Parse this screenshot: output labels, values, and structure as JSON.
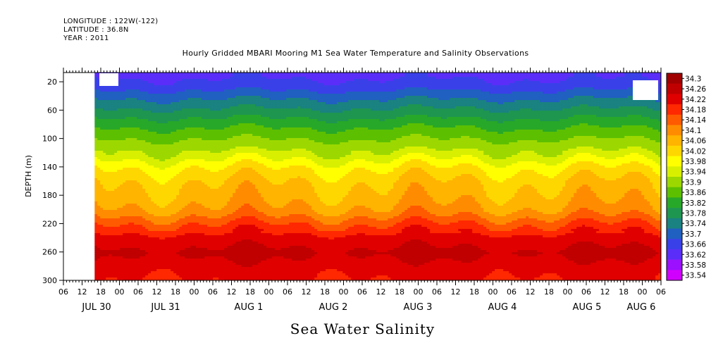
{
  "header": {
    "longitude": "LONGITUDE : 122W(-122)",
    "latitude": "LATITUDE : 36.8N",
    "year": "YEAR : 2011"
  },
  "title": "Hourly Gridded MBARI Mooring M1 Sea Water Temperature and Salinity Observations",
  "bottom_title": "Sea Water Salinity",
  "chart_data": {
    "type": "heatmap",
    "title": "Hourly Gridded MBARI Mooring M1 Sea Water Temperature and Salinity Observations",
    "variable": "Sea Water Salinity",
    "ylabel": "DEPTH (m)",
    "y_ticks": [
      20,
      60,
      100,
      140,
      180,
      220,
      260,
      300
    ],
    "ylim": [
      300,
      7
    ],
    "y_reversed": true,
    "x_ticks": [
      "06",
      "12",
      "18",
      "00",
      "06",
      "12",
      "18",
      "00",
      "06",
      "12",
      "18",
      "00",
      "06",
      "12",
      "18",
      "00",
      "06",
      "12",
      "18",
      "00",
      "06",
      "12",
      "18",
      "00",
      "06",
      "12",
      "18",
      "00",
      "06",
      "12",
      "18",
      "00",
      "06"
    ],
    "x_start": "2011-07-30 06:00",
    "x_end": "2011-08-06 06:00",
    "x_tick_step_hours": 6,
    "day_labels": [
      {
        "label": "JUL 30",
        "day": 30,
        "month": "JUL"
      },
      {
        "label": "JUL 31",
        "day": 31,
        "month": "JUL"
      },
      {
        "label": "AUG  1",
        "day": 1,
        "month": "AUG"
      },
      {
        "label": "AUG  2",
        "day": 2,
        "month": "AUG"
      },
      {
        "label": "AUG  3",
        "day": 3,
        "month": "AUG"
      },
      {
        "label": "AUG  4",
        "day": 4,
        "month": "AUG"
      },
      {
        "label": "AUG  5",
        "day": 5,
        "month": "AUG"
      },
      {
        "label": "AUG  6",
        "day": 6,
        "month": "AUG"
      }
    ],
    "data_start": "2011-07-30 16:00",
    "colorbar_levels": [
      "34.3",
      "34.26",
      "34.22",
      "34.18",
      "34.14",
      "34.1",
      "34.06",
      "34.02",
      "33.98",
      "33.94",
      "33.9",
      "33.86",
      "33.82",
      "33.78",
      "33.74",
      "33.7",
      "33.66",
      "33.62",
      "33.58",
      "33.54"
    ],
    "colorbar_colors": [
      "#a00000",
      "#c00000",
      "#e00000",
      "#ff2800",
      "#ff5a00",
      "#ff8c00",
      "#ffb400",
      "#ffd700",
      "#ffff00",
      "#d8f000",
      "#9cd800",
      "#5cc000",
      "#28a828",
      "#1e9650",
      "#1a8280",
      "#2060c0",
      "#3a40e8",
      "#5a2ef8",
      "#9a10ff",
      "#d000ff"
    ],
    "profile": [
      {
        "depth": 10,
        "value": 33.65
      },
      {
        "depth": 25,
        "value": 33.68
      },
      {
        "depth": 40,
        "value": 33.73
      },
      {
        "depth": 60,
        "value": 33.79
      },
      {
        "depth": 80,
        "value": 33.85
      },
      {
        "depth": 100,
        "value": 33.9
      },
      {
        "depth": 120,
        "value": 33.95
      },
      {
        "depth": 140,
        "value": 34.02
      },
      {
        "depth": 160,
        "value": 34.06
      },
      {
        "depth": 180,
        "value": 34.08
      },
      {
        "depth": 200,
        "value": 34.11
      },
      {
        "depth": 220,
        "value": 34.18
      },
      {
        "depth": 240,
        "value": 34.24
      },
      {
        "depth": 260,
        "value": 34.27
      },
      {
        "depth": 280,
        "value": 34.24
      },
      {
        "depth": 300,
        "value": 34.22
      }
    ]
  }
}
